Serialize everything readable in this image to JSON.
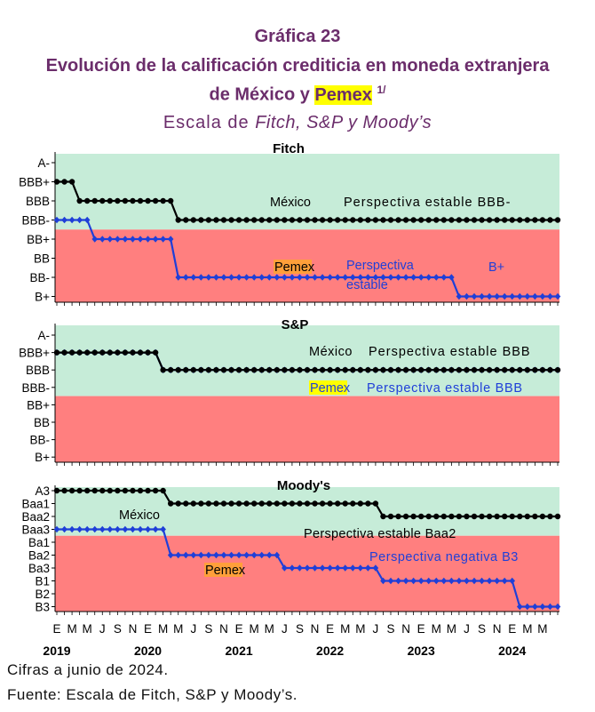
{
  "header": {
    "title": "Gráfica 23",
    "line1": "Evolución de la calificación crediticia en moneda extranjera",
    "line2_a": "de México y ",
    "line2_hl": "Pemex",
    "line2_sup": "1/",
    "line3_a": "Escala de ",
    "line3_b": "Fitch, S&P y Moody’s"
  },
  "footer": {
    "note": "Cifras a junio de 2024.",
    "source": "Fuente: Escala de Fitch, S&P y Moody’s."
  },
  "colors": {
    "green_zone": "#c6ecd8",
    "red_zone": "#ff7f7f",
    "mexico": "#000000",
    "pemex": "#1f3fd8",
    "pemex_label_bg": "#ff9f3a",
    "pemex_label_bg_sp": "#ffff00"
  },
  "chart_data": [
    {
      "type": "line",
      "title": "Fitch",
      "y_levels": [
        "A-",
        "BBB+",
        "BBB",
        "BBB-",
        "BB+",
        "BB",
        "BB-",
        "B+"
      ],
      "investment_grade_threshold": "BBB-",
      "series": [
        {
          "name": "México",
          "steps": [
            {
              "from_index": 0,
              "to_index": 2,
              "rating": "BBB+"
            },
            {
              "from_index": 3,
              "to_index": 15,
              "rating": "BBB"
            },
            {
              "from_index": 16,
              "to_index": 66,
              "rating": "BBB-"
            }
          ]
        },
        {
          "name": "Pemex",
          "steps": [
            {
              "from_index": 0,
              "to_index": 4,
              "rating": "BBB-"
            },
            {
              "from_index": 5,
              "to_index": 15,
              "rating": "BB+"
            },
            {
              "from_index": 16,
              "to_index": 52,
              "rating": "BB-"
            },
            {
              "from_index": 53,
              "to_index": 66,
              "rating": "B+"
            }
          ]
        }
      ],
      "annotations": [
        {
          "text": "México",
          "series": "México"
        },
        {
          "text": "Perspectiva estable BBB-",
          "series": "México"
        },
        {
          "text": "Pemex",
          "series": "Pemex"
        },
        {
          "text": "Perspectiva",
          "series": "Pemex"
        },
        {
          "text": "estable",
          "series": "Pemex"
        },
        {
          "text": "B+",
          "series": "Pemex"
        }
      ]
    },
    {
      "type": "line",
      "title": "S&P",
      "y_levels": [
        "A-",
        "BBB+",
        "BBB",
        "BBB-",
        "BB+",
        "BB",
        "BB-",
        "B+"
      ],
      "investment_grade_threshold": "BBB-",
      "series": [
        {
          "name": "México",
          "steps": [
            {
              "from_index": 0,
              "to_index": 13,
              "rating": "BBB+"
            },
            {
              "from_index": 14,
              "to_index": 66,
              "rating": "BBB"
            }
          ]
        },
        {
          "name": "Pemex",
          "steps": [
            {
              "from_index": 0,
              "to_index": 13,
              "rating": "BBB+"
            },
            {
              "from_index": 14,
              "to_index": 66,
              "rating": "BBB"
            }
          ]
        }
      ],
      "annotations": [
        {
          "text": "México",
          "series": "México"
        },
        {
          "text": "Perspectiva estable BBB",
          "series": "México"
        },
        {
          "text": "Pemex",
          "series": "Pemex"
        },
        {
          "text": "Perspectiva estable BBB",
          "series": "Pemex"
        }
      ]
    },
    {
      "type": "line",
      "title": "Moody's",
      "y_levels": [
        "A3",
        "Baa1",
        "Baa2",
        "Baa3",
        "Ba1",
        "Ba2",
        "Ba3",
        "B1",
        "B2",
        "B3"
      ],
      "investment_grade_threshold": "Baa3",
      "series": [
        {
          "name": "México",
          "steps": [
            {
              "from_index": 0,
              "to_index": 14,
              "rating": "A3"
            },
            {
              "from_index": 15,
              "to_index": 42,
              "rating": "Baa1"
            },
            {
              "from_index": 43,
              "to_index": 66,
              "rating": "Baa2"
            }
          ]
        },
        {
          "name": "Pemex",
          "steps": [
            {
              "from_index": 0,
              "to_index": 14,
              "rating": "Baa3"
            },
            {
              "from_index": 15,
              "to_index": 29,
              "rating": "Ba2"
            },
            {
              "from_index": 30,
              "to_index": 42,
              "rating": "Ba3"
            },
            {
              "from_index": 43,
              "to_index": 60,
              "rating": "B1"
            },
            {
              "from_index": 61,
              "to_index": 66,
              "rating": "B3"
            }
          ]
        }
      ],
      "annotations": [
        {
          "text": "México",
          "series": "México"
        },
        {
          "text": "Perspectiva estable Baa2",
          "series": "México"
        },
        {
          "text": "Pemex",
          "series": "Pemex"
        },
        {
          "text": "Perspectiva negativa B3",
          "series": "Pemex"
        }
      ]
    }
  ],
  "x_axis": {
    "month_labels": [
      "E",
      "M",
      "M",
      "J",
      "S",
      "N",
      "E",
      "M",
      "M",
      "J",
      "S",
      "N",
      "E",
      "M",
      "M",
      "J",
      "S",
      "N",
      "E",
      "M",
      "M",
      "J",
      "S",
      "N",
      "E",
      "M",
      "M",
      "J",
      "S",
      "N",
      "E",
      "M",
      "M"
    ],
    "years": [
      "2019",
      "2020",
      "2021",
      "2022",
      "2023",
      "2024"
    ],
    "n_points": 67
  }
}
